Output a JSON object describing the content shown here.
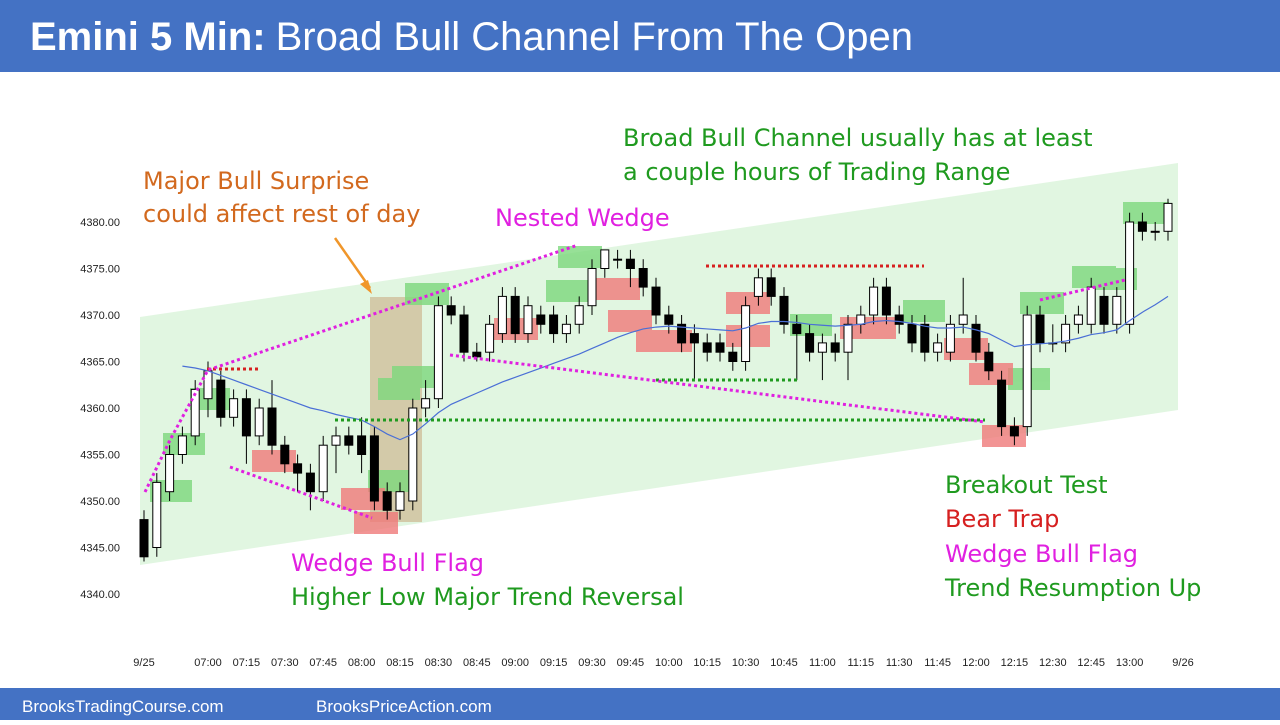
{
  "header": {
    "title_bold": "Emini 5 Min:",
    "title_rest": "Broad Bull Channel From The Open"
  },
  "chart_data": {
    "type": "candlestick",
    "categories": [
      "9/25",
      null,
      null,
      null,
      null,
      "07:00",
      null,
      null,
      "07:15",
      null,
      null,
      "07:30",
      null,
      null,
      "07:45",
      null,
      null,
      "08:00",
      null,
      null,
      "08:15",
      null,
      null,
      "08:30",
      null,
      null,
      "08:45",
      null,
      null,
      "09:00",
      null,
      null,
      "09:15",
      null,
      null,
      "09:30",
      null,
      null,
      "09:45",
      null,
      null,
      "10:00",
      null,
      null,
      "10:15",
      null,
      null,
      "10:30",
      null,
      null,
      "10:45",
      null,
      null,
      "11:00",
      null,
      null,
      "11:15",
      null,
      null,
      "11:30",
      null,
      null,
      "11:45",
      null,
      null,
      "12:00",
      null,
      null,
      "12:15",
      null,
      null,
      "12:30",
      null,
      null,
      "12:45",
      null,
      null,
      "13:00",
      null,
      null,
      null
    ],
    "date_end": "9/26",
    "open": [
      4348,
      4345,
      4351,
      4355,
      4357,
      4361,
      4363,
      4359,
      4361,
      4357,
      4360,
      4356,
      4354,
      4353,
      4351,
      4356,
      4357,
      4357,
      4357,
      4351,
      4349,
      4350,
      4360,
      4361,
      4371,
      4370,
      4366,
      4366,
      4368,
      4372,
      4368,
      4370,
      4370,
      4368,
      4369,
      4371,
      4375,
      4376,
      4376,
      4375,
      4373,
      4370,
      4369,
      4368,
      4367,
      4367,
      4366,
      4365,
      4372,
      4374,
      4372,
      4369,
      4368,
      4366,
      4367,
      4366,
      4369,
      4370,
      4373,
      4370,
      4369,
      4369,
      4366,
      4366,
      4369,
      4369,
      4366,
      4363,
      4358,
      4358,
      4370,
      4367,
      4367,
      4369,
      4369,
      4372,
      4369,
      4369,
      4380,
      4379,
      4379
    ],
    "high": [
      4349,
      4353,
      4356,
      4358,
      4363,
      4365,
      4364,
      4362,
      4362,
      4361,
      4363,
      4357,
      4355,
      4354,
      4357,
      4358,
      4358,
      4359,
      4358,
      4352,
      4352,
      4361,
      4363,
      4372,
      4372,
      4371,
      4367,
      4370,
      4373,
      4373,
      4372,
      4371,
      4371,
      4370,
      4372,
      4376,
      4377,
      4377,
      4377,
      4376,
      4374,
      4371,
      4370,
      4369,
      4368,
      4368,
      4367,
      4372,
      4375,
      4375,
      4373,
      4370,
      4369,
      4368,
      4368,
      4370,
      4371,
      4374,
      4374,
      4371,
      4370,
      4370,
      4368,
      4370,
      4374,
      4370,
      4367,
      4364,
      4359,
      4371,
      4371,
      4369,
      4370,
      4371,
      4374,
      4373,
      4373,
      4381,
      4381,
      4380,
      4382.5
    ],
    "low": [
      4343.5,
      4344,
      4350,
      4354,
      4356,
      4359,
      4358,
      4358,
      4354,
      4356,
      4355,
      4353,
      4351,
      4349,
      4350,
      4353,
      4355,
      4353,
      4349,
      4348,
      4348,
      4349,
      4359,
      4360,
      4369,
      4365,
      4365,
      4365,
      4367,
      4367,
      4367,
      4368,
      4367,
      4367,
      4368,
      4370,
      4374,
      4375,
      4373,
      4372,
      4369,
      4368,
      4366,
      4363,
      4365,
      4365,
      4364,
      4364,
      4371,
      4371,
      4368,
      4363,
      4365,
      4363,
      4365,
      4363,
      4368,
      4369,
      4369,
      4368,
      4366,
      4365,
      4365,
      4365,
      4368,
      4365,
      4363,
      4357,
      4356,
      4357,
      4366,
      4366,
      4366,
      4368,
      4368,
      4368,
      4368,
      4368,
      4378,
      4378,
      4378
    ],
    "close": [
      4344,
      4352,
      4355,
      4357,
      4362,
      4364,
      4359,
      4361,
      4357,
      4360,
      4356,
      4354,
      4353,
      4351,
      4356,
      4357,
      4356,
      4355,
      4350,
      4349,
      4351,
      4360,
      4361,
      4371,
      4370,
      4366,
      4365.5,
      4369,
      4372,
      4368,
      4371,
      4369,
      4368,
      4369,
      4371,
      4375,
      4377,
      4376,
      4375,
      4373,
      4370,
      4369,
      4367,
      4367,
      4366,
      4366,
      4365,
      4371,
      4374,
      4372,
      4369,
      4368,
      4366,
      4367,
      4366,
      4369,
      4370,
      4373,
      4370,
      4369,
      4367,
      4366,
      4367,
      4369,
      4370,
      4366,
      4364,
      4358,
      4357,
      4370,
      4367,
      4367,
      4369,
      4370,
      4373,
      4369,
      4372,
      4380,
      4379,
      4379,
      4382
    ],
    "ema": [
      null,
      null,
      null,
      4364.5,
      4364.3,
      4364,
      4363.5,
      4363,
      4362.5,
      4362,
      4361.5,
      4361,
      4360.5,
      4360,
      4359.7,
      4359.3,
      4359,
      4358.7,
      4358,
      4357.2,
      4356.6,
      4357.2,
      4358.3,
      4359.5,
      4360.4,
      4361,
      4361.6,
      4362.2,
      4362.8,
      4363.3,
      4363.8,
      4364.3,
      4364.8,
      4365.3,
      4365.8,
      4366.4,
      4367,
      4367.6,
      4368.1,
      4368.5,
      4368.7,
      4368.8,
      4368.7,
      4368.6,
      4368.5,
      4368.4,
      4368.3,
      4368.6,
      4369.1,
      4369.3,
      4369.3,
      4369.2,
      4369,
      4368.9,
      4368.8,
      4368.9,
      4369,
      4369.3,
      4369.4,
      4369.3,
      4369.1,
      4368.8,
      4368.6,
      4368.6,
      4368.7,
      4368.4,
      4368,
      4367.3,
      4366.6,
      4366.8,
      4366.9,
      4367,
      4367.2,
      4367.5,
      4367.9,
      4368.1,
      4368.4,
      4369.4,
      4370.3,
      4371.1,
      4372
    ],
    "ema_color": "#4a6fd6",
    "bull_color": "#ffffff",
    "bear_color": "#000000",
    "ylim": [
      4336,
      4391
    ],
    "yticks": [
      {
        "value": 4340,
        "label": "4340.00"
      },
      {
        "value": 4345,
        "label": "4345.00"
      },
      {
        "value": 4350,
        "label": "4350.00"
      },
      {
        "value": 4355,
        "label": "4355.00"
      },
      {
        "value": 4360,
        "label": "4360.00"
      },
      {
        "value": 4365,
        "label": "4365.00"
      },
      {
        "value": 4370,
        "label": "4370.00"
      },
      {
        "value": 4375,
        "label": "4375.00"
      },
      {
        "value": 4380,
        "label": "4380.00"
      }
    ],
    "annotations": [
      "Major Bull Surprise",
      "could affect rest of day",
      "Nested Wedge",
      "Broad Bull Channel usually has at least",
      "a couple hours of Trading Range",
      "Wedge Bull Flag",
      "Higher Low Major Trend Reversal",
      "Breakout Test",
      "Bear Trap",
      "Wedge Bull Flag",
      "Trend Resumption Up"
    ]
  },
  "footer": {
    "left": "BrooksTradingCourse.com",
    "right": "BrooksPriceAction.com"
  }
}
